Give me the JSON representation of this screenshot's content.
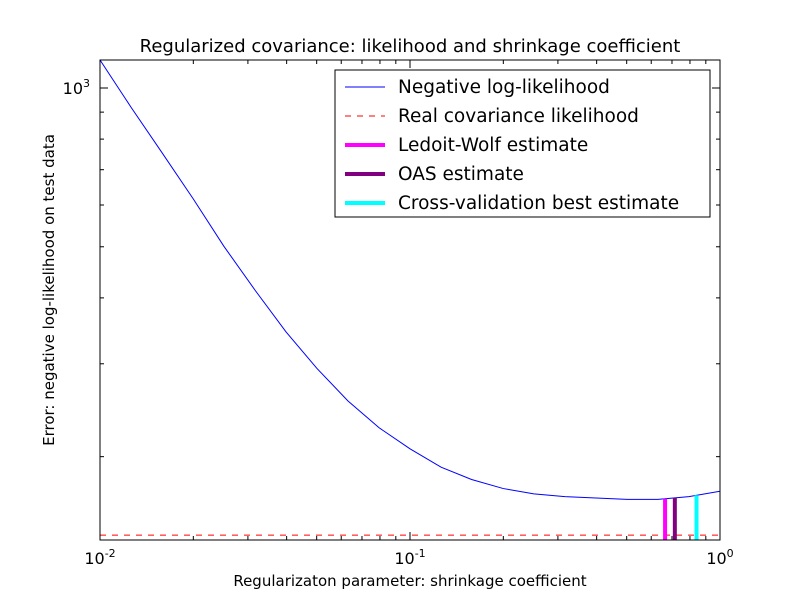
{
  "colors": {
    "negative_log_likelihood": "#0000ff",
    "real_covariance_likelihood": "#ff0000",
    "ledoit_wolf": "#ff00ff",
    "oas": "#800080",
    "cross_validation": "#00ffff",
    "frame": "#000000",
    "background": "#ffffff"
  },
  "chart_data": {
    "type": "line",
    "title": "Regularized covariance: likelihood and shrinkage coefficient",
    "xlabel": "Regularizaton parameter: shrinkage coefficient",
    "ylabel": "Error: negative log-likelihood on test data",
    "xscale": "log",
    "yscale": "log",
    "xlim": [
      0.01,
      1.0
    ],
    "ylim": [
      139,
      1130
    ],
    "grid": false,
    "legend_position": "top-right",
    "x_ticks": [
      {
        "value": 0.01,
        "base": "10",
        "exp": "-2"
      },
      {
        "value": 0.1,
        "base": "10",
        "exp": "-1"
      },
      {
        "value": 1.0,
        "base": "10",
        "exp": "0"
      }
    ],
    "y_ticks": [
      {
        "value": 1000,
        "base": "10",
        "exp": "3"
      }
    ],
    "series": [
      {
        "name": "Negative log-likelihood",
        "style": "solid",
        "x": [
          0.01,
          0.0126,
          0.0158,
          0.02,
          0.0251,
          0.0316,
          0.0398,
          0.0501,
          0.0631,
          0.0794,
          0.1,
          0.126,
          0.158,
          0.2,
          0.251,
          0.316,
          0.398,
          0.501,
          0.631,
          0.794,
          1.0
        ],
        "y": [
          1130,
          919,
          756,
          616,
          501,
          414,
          345,
          294,
          255,
          227,
          207,
          191,
          181,
          174,
          170,
          168,
          167,
          166,
          166,
          168,
          172
        ]
      },
      {
        "name": "Real covariance likelihood",
        "style": "dashed",
        "y_constant": 142
      },
      {
        "name": "Ledoit-Wolf estimate",
        "style": "vline",
        "x_value": 0.665
      },
      {
        "name": "OAS estimate",
        "style": "vline",
        "x_value": 0.715
      },
      {
        "name": "Cross-validation best estimate",
        "style": "vline",
        "x_value": 0.84
      }
    ]
  }
}
